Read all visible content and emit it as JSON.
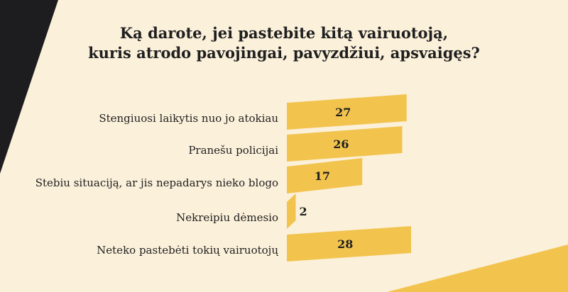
{
  "colors": {
    "background": "#fbf0da",
    "bar": "#f2c44e",
    "dark_corner": "#1d1d1f",
    "yellow_corner": "#f2c44e"
  },
  "chart_data": {
    "type": "bar",
    "orientation": "horizontal",
    "title_line1": "Ką darote, jei pastebite kitą vairuotoją,",
    "title_line2": "kuris atrodo pavojingai, pavyzdžiui, apsvaigęs?",
    "categories": [
      "Stengiuosi laikytis nuo jo atokiau",
      "Pranešu policijai",
      "Stebiu situaciją, ar jis nepadarys nieko blogo",
      "Nekreipiu dėmesio",
      "Neteko pastebėti tokių vairuotojų"
    ],
    "values": [
      27,
      26,
      17,
      2,
      28
    ],
    "value_labels": [
      "27",
      "26",
      "17",
      "2",
      "28"
    ],
    "xlim": [
      0,
      28
    ]
  }
}
